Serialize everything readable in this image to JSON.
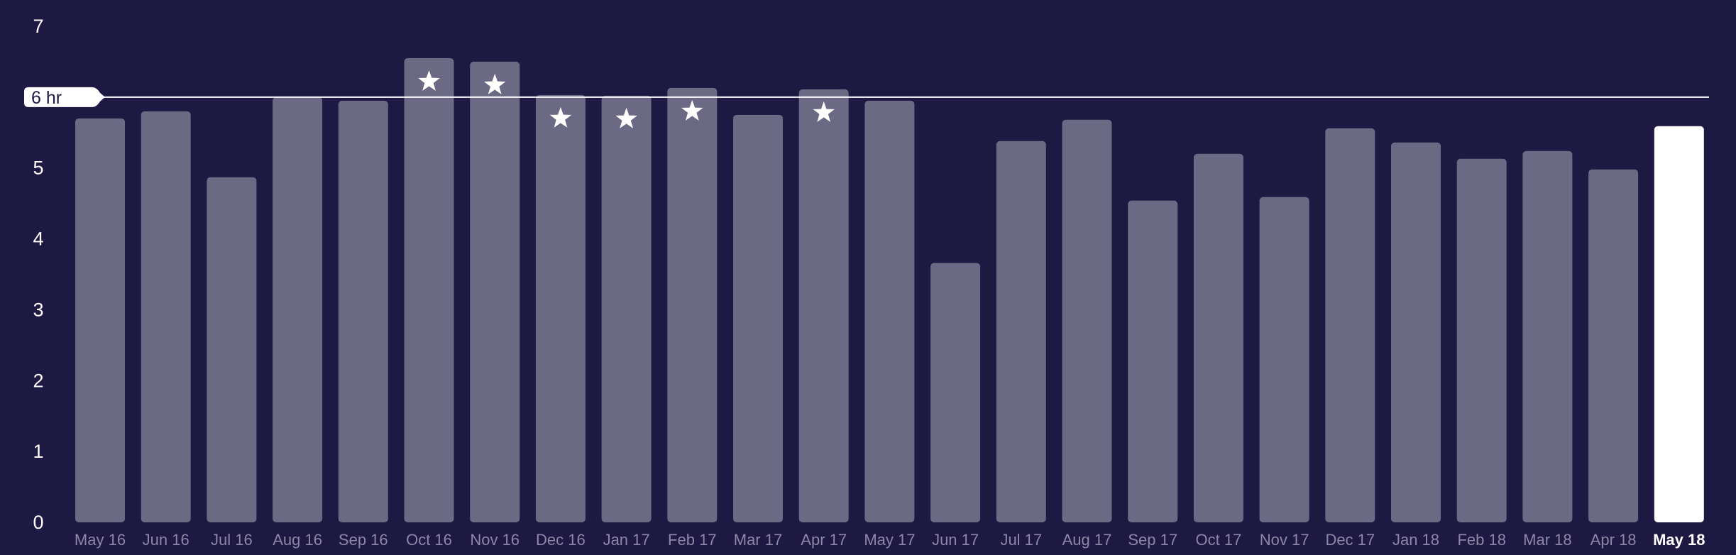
{
  "chart_data": {
    "type": "bar",
    "categories": [
      "May 16",
      "Jun 16",
      "Jul 16",
      "Aug 16",
      "Sep 16",
      "Oct 16",
      "Nov 16",
      "Dec 16",
      "Jan 17",
      "Feb 17",
      "Mar 17",
      "Apr 17",
      "May 17",
      "Jun 17",
      "Jul 17",
      "Aug 17",
      "Sep 17",
      "Oct 17",
      "Nov 17",
      "Dec 17",
      "Jan 18",
      "Feb 18",
      "Mar 18",
      "Apr 18",
      "May 18"
    ],
    "values": [
      5.7,
      5.8,
      4.87,
      6.0,
      5.95,
      6.55,
      6.5,
      6.03,
      6.02,
      6.13,
      5.75,
      6.11,
      5.95,
      3.66,
      5.38,
      5.68,
      4.54,
      5.2,
      4.59,
      5.56,
      5.36,
      5.13,
      5.24,
      4.98,
      5.59
    ],
    "starred": [
      false,
      false,
      false,
      false,
      false,
      true,
      true,
      true,
      true,
      true,
      false,
      true,
      false,
      false,
      false,
      false,
      false,
      false,
      false,
      false,
      false,
      false,
      false,
      false,
      false
    ],
    "highlighted_category": "May 18",
    "goal": 6,
    "goal_label": "6 hr",
    "y_ticks": [
      0,
      1,
      2,
      3,
      4,
      5,
      7
    ],
    "ylim": [
      0,
      7
    ],
    "title": "",
    "xlabel": "",
    "ylabel": "",
    "grid": false,
    "colors": {
      "background": "#1e1942",
      "bar": "#6b6984",
      "current_bar": "#ffffff",
      "goal_line": "#ffffff",
      "tick_label": "#8c87a6"
    },
    "marker_icon": "star-icon"
  }
}
